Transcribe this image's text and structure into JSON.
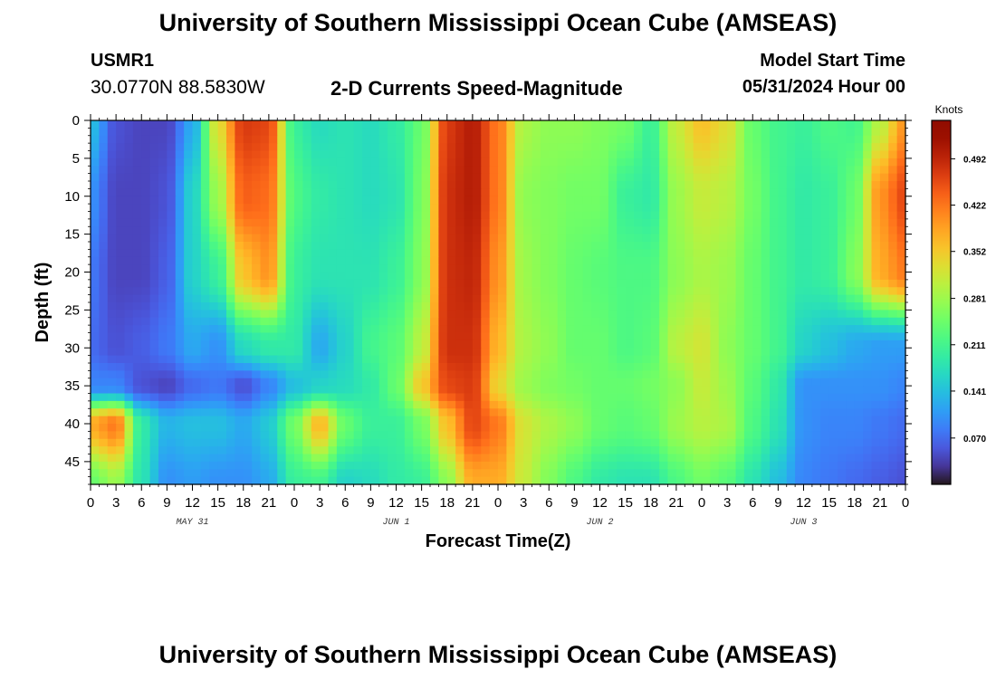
{
  "page": {
    "title": "University of Southern Mississippi Ocean Cube (AMSEAS)",
    "title_repeat": "University of Southern Mississippi Ocean Cube (AMSEAS)",
    "station": "USMR1",
    "coordinates": "30.0770N  88.5830W",
    "subtitle": "2-D Currents Speed-Magnitude",
    "model_start_label": "Model Start Time",
    "model_start_value": "05/31/2024 Hour 00"
  },
  "chart_data": {
    "type": "heatmap",
    "title": "2-D Currents Speed-Magnitude",
    "xlabel": "Forecast Time(Z)",
    "ylabel": "Depth (ft)",
    "x_tick_labels": [
      "0",
      "3",
      "6",
      "9",
      "12",
      "15",
      "18",
      "21",
      "0",
      "3",
      "6",
      "9",
      "12",
      "15",
      "18",
      "21",
      "0",
      "3",
      "6",
      "9",
      "12",
      "15",
      "18",
      "21",
      "0",
      "3",
      "6",
      "9",
      "12",
      "15",
      "18",
      "21",
      "0"
    ],
    "x_hours_range": [
      0,
      96
    ],
    "day_labels": [
      {
        "text": "MAY 31",
        "hour": 12
      },
      {
        "text": "JUN 1",
        "hour": 36
      },
      {
        "text": "JUN 2",
        "hour": 60
      },
      {
        "text": "JUN 3",
        "hour": 84
      }
    ],
    "y_ticks": [
      0,
      5,
      10,
      15,
      20,
      25,
      30,
      35,
      40,
      45
    ],
    "ylim": [
      0,
      48
    ],
    "y_inverted": true,
    "colorbar": {
      "unit": "Knots",
      "ticks": [
        "0.070",
        "0.141",
        "0.211",
        "0.281",
        "0.352",
        "0.422",
        "0.492"
      ],
      "tick_values": [
        0.07,
        0.141,
        0.211,
        0.281,
        0.352,
        0.422,
        0.492
      ],
      "range": [
        0.0,
        0.55
      ],
      "colormap": "turbo"
    },
    "depth_levels": [
      0,
      10,
      20,
      30,
      35,
      40,
      48
    ],
    "speed_grid_hours": [
      0,
      3,
      6,
      9,
      12,
      15,
      18,
      21,
      24,
      27,
      30,
      33,
      36,
      39,
      42,
      45,
      48,
      51,
      54,
      57,
      60,
      63,
      66,
      69,
      72,
      75,
      78,
      81,
      84,
      87,
      90,
      93,
      96
    ],
    "speed_grid": [
      [
        0.14,
        0.05,
        0.04,
        0.04,
        0.12,
        0.33,
        0.47,
        0.46,
        0.2,
        0.17,
        0.18,
        0.17,
        0.19,
        0.24,
        0.47,
        0.5,
        0.42,
        0.29,
        0.27,
        0.27,
        0.26,
        0.25,
        0.2,
        0.31,
        0.36,
        0.33,
        0.24,
        0.21,
        0.2,
        0.22,
        0.21,
        0.3,
        0.4
      ],
      [
        0.1,
        0.04,
        0.04,
        0.05,
        0.16,
        0.28,
        0.44,
        0.43,
        0.22,
        0.19,
        0.18,
        0.17,
        0.18,
        0.25,
        0.48,
        0.5,
        0.42,
        0.27,
        0.26,
        0.25,
        0.25,
        0.2,
        0.19,
        0.28,
        0.31,
        0.3,
        0.25,
        0.21,
        0.19,
        0.2,
        0.24,
        0.4,
        0.46
      ],
      [
        0.08,
        0.04,
        0.04,
        0.06,
        0.16,
        0.2,
        0.36,
        0.4,
        0.2,
        0.18,
        0.18,
        0.18,
        0.2,
        0.26,
        0.48,
        0.49,
        0.4,
        0.28,
        0.26,
        0.24,
        0.23,
        0.22,
        0.22,
        0.27,
        0.29,
        0.28,
        0.24,
        0.21,
        0.19,
        0.2,
        0.26,
        0.38,
        0.42
      ],
      [
        0.07,
        0.05,
        0.06,
        0.08,
        0.12,
        0.1,
        0.17,
        0.19,
        0.19,
        0.12,
        0.16,
        0.21,
        0.23,
        0.3,
        0.48,
        0.48,
        0.37,
        0.29,
        0.27,
        0.24,
        0.24,
        0.22,
        0.23,
        0.3,
        0.32,
        0.27,
        0.24,
        0.21,
        0.16,
        0.14,
        0.12,
        0.11,
        0.11
      ],
      [
        0.09,
        0.09,
        0.05,
        0.04,
        0.07,
        0.08,
        0.05,
        0.09,
        0.14,
        0.16,
        0.17,
        0.19,
        0.24,
        0.35,
        0.46,
        0.47,
        0.34,
        0.28,
        0.26,
        0.25,
        0.24,
        0.24,
        0.25,
        0.27,
        0.31,
        0.28,
        0.23,
        0.19,
        0.1,
        0.1,
        0.1,
        0.1,
        0.09
      ],
      [
        0.38,
        0.42,
        0.19,
        0.13,
        0.14,
        0.14,
        0.12,
        0.15,
        0.25,
        0.37,
        0.24,
        0.2,
        0.2,
        0.25,
        0.36,
        0.46,
        0.42,
        0.32,
        0.29,
        0.27,
        0.24,
        0.23,
        0.24,
        0.28,
        0.3,
        0.29,
        0.22,
        0.18,
        0.1,
        0.09,
        0.09,
        0.08,
        0.07
      ],
      [
        0.24,
        0.28,
        0.18,
        0.1,
        0.11,
        0.1,
        0.1,
        0.12,
        0.2,
        0.21,
        0.16,
        0.17,
        0.19,
        0.2,
        0.27,
        0.38,
        0.38,
        0.31,
        0.26,
        0.22,
        0.19,
        0.18,
        0.18,
        0.22,
        0.25,
        0.23,
        0.18,
        0.14,
        0.09,
        0.08,
        0.07,
        0.06,
        0.05
      ]
    ]
  }
}
